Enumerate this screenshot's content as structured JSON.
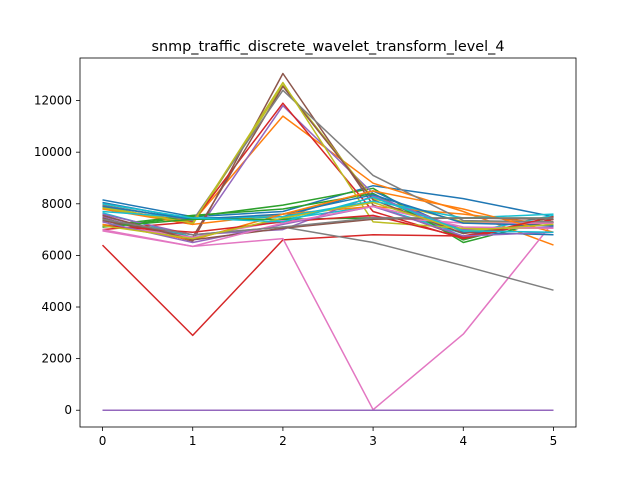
{
  "chart_data": {
    "type": "line",
    "title": "snmp_traffic_discrete_wavelet_transform_level_4",
    "xlabel": "",
    "ylabel": "",
    "x": [
      0,
      1,
      2,
      3,
      4,
      5
    ],
    "xlim": [
      -0.25,
      5.25
    ],
    "ylim": [
      -650,
      13650
    ],
    "xticks": [
      0,
      1,
      2,
      3,
      4,
      5
    ],
    "yticks": [
      0,
      2000,
      4000,
      6000,
      8000,
      10000,
      12000
    ],
    "grid": false,
    "legend": "none",
    "series": [
      {
        "color": "#1f77b4",
        "values": [
          8150,
          7500,
          7700,
          8700,
          8200,
          7500
        ]
      },
      {
        "color": "#ff7f0e",
        "values": [
          7850,
          7300,
          11400,
          8800,
          7700,
          6400
        ]
      },
      {
        "color": "#2ca02c",
        "values": [
          7100,
          7500,
          7950,
          8600,
          6500,
          7400
        ]
      },
      {
        "color": "#d62728",
        "values": [
          6400,
          2900,
          6600,
          6800,
          6750,
          7400
        ]
      },
      {
        "color": "#9467bd",
        "values": [
          7500,
          6700,
          11800,
          8400,
          6700,
          7400
        ]
      },
      {
        "color": "#8c564b",
        "values": [
          7450,
          6550,
          13050,
          7950,
          6700,
          7400
        ]
      },
      {
        "color": "#e377c2",
        "values": [
          6950,
          6350,
          6650,
          20,
          2950,
          7300
        ]
      },
      {
        "color": "#7f7f7f",
        "values": [
          7350,
          6800,
          7100,
          6500,
          5600,
          4650
        ]
      },
      {
        "color": "#bcbd22",
        "values": [
          7900,
          7200,
          12600,
          8200,
          7300,
          7300
        ]
      },
      {
        "color": "#17becf",
        "values": [
          7650,
          6700,
          7400,
          7900,
          6850,
          7550
        ]
      },
      {
        "color": "#1f77b4",
        "values": [
          8050,
          7400,
          7500,
          8500,
          6900,
          6800
        ]
      },
      {
        "color": "#ff7f0e",
        "values": [
          7800,
          7200,
          7600,
          7900,
          7600,
          7200
        ]
      },
      {
        "color": "#2ca02c",
        "values": [
          7150,
          7550,
          7800,
          8400,
          6600,
          7500
        ]
      },
      {
        "color": "#d62728",
        "values": [
          7000,
          7300,
          11900,
          7700,
          6650,
          7400
        ]
      },
      {
        "color": "#9467bd",
        "values": [
          7600,
          6800,
          7000,
          8300,
          7000,
          7100
        ]
      },
      {
        "color": "#8c564b",
        "values": [
          7350,
          6700,
          12550,
          8150,
          6850,
          7300
        ]
      },
      {
        "color": "#e377c2",
        "values": [
          7200,
          6700,
          7350,
          7500,
          7250,
          7250
        ]
      },
      {
        "color": "#7f7f7f",
        "values": [
          7950,
          7350,
          12400,
          9100,
          7350,
          7300
        ]
      },
      {
        "color": "#bcbd22",
        "values": [
          7850,
          7250,
          12700,
          7300,
          7050,
          7050
        ]
      },
      {
        "color": "#17becf",
        "values": [
          7700,
          7450,
          7500,
          8100,
          7450,
          7600
        ]
      },
      {
        "color": "#1f77b4",
        "values": [
          7900,
          7400,
          7600,
          8350,
          7250,
          7150
        ]
      },
      {
        "color": "#ff7f0e",
        "values": [
          7200,
          6600,
          7600,
          8500,
          7800,
          6900
        ]
      },
      {
        "color": "#2ca02c",
        "values": [
          7100,
          7400,
          7400,
          7450,
          7450,
          7450
        ]
      },
      {
        "color": "#d62728",
        "values": [
          7150,
          6900,
          7300,
          7550,
          6700,
          7500
        ]
      },
      {
        "color": "#9467bd",
        "values": [
          7300,
          6500,
          7200,
          7900,
          6750,
          6900
        ]
      },
      {
        "color": "#8c564b",
        "values": [
          7550,
          6600,
          7050,
          7400,
          7450,
          7400
        ]
      },
      {
        "color": "#e377c2",
        "values": [
          7000,
          6350,
          7250,
          7900,
          7100,
          7050
        ]
      },
      {
        "color": "#7f7f7f",
        "values": [
          7400,
          6800,
          7100,
          7450,
          7450,
          7450
        ]
      },
      {
        "color": "#bcbd22",
        "values": [
          7150,
          6650,
          7450,
          8050,
          6950,
          7200
        ]
      },
      {
        "color": "#17becf",
        "values": [
          8000,
          7450,
          7300,
          8250,
          6950,
          6900
        ]
      },
      {
        "color": "#2ca02c",
        "values": [
          0,
          0,
          0,
          0,
          0,
          0
        ]
      },
      {
        "color": "#d62728",
        "values": [
          0,
          0,
          0,
          0,
          0,
          0
        ]
      },
      {
        "color": "#8c564b",
        "values": [
          0,
          0,
          0,
          0,
          0,
          0
        ]
      },
      {
        "color": "#9467bd",
        "values": [
          0,
          0,
          0,
          0,
          0,
          0
        ]
      }
    ]
  }
}
